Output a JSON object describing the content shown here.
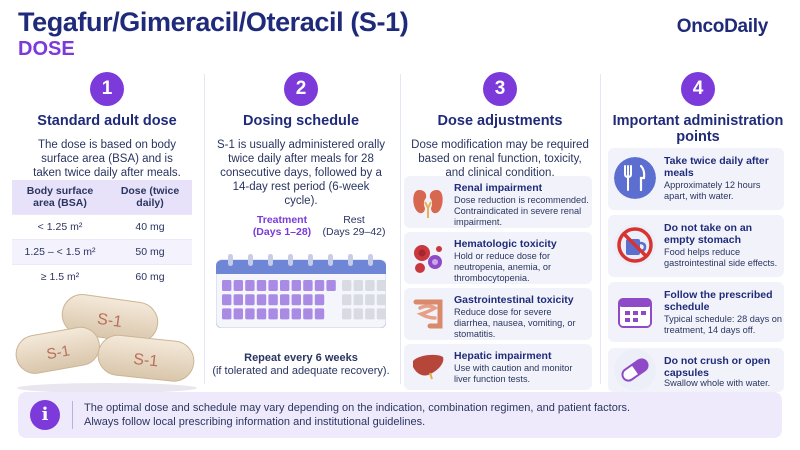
{
  "header": {
    "title": "Tegafur/Gimeracil/Oteracil (S-1)",
    "subtitle": "DOSE",
    "brand": "OncoDaily"
  },
  "columns": [
    {
      "number": "1",
      "title": "Standard adult dose",
      "text": "The dose is based on body surface area (BSA) and is taken twice daily after meals.",
      "table": {
        "headers": [
          "Body surface area (BSA)",
          "Dose (twice daily)"
        ],
        "rows": [
          [
            "< 1.25 m²",
            "40 mg"
          ],
          [
            "1.25 – < 1.5 m²",
            "50 mg"
          ],
          [
            "≥ 1.5 m²",
            "60 mg"
          ]
        ]
      },
      "pill_label": "S-1"
    },
    {
      "number": "2",
      "title": "Dosing schedule",
      "text": "S-1 is usually administered orally twice daily after meals for 28 consecutive days, followed by a 14-day rest period (6-week cycle).",
      "treatment_label": "Treatment",
      "treatment_days": "(Days 1–28)",
      "rest_label": "Rest",
      "rest_days": "(Days 29–42)",
      "treatment_day_count": 28,
      "rest_day_count": 14,
      "repeat_title": "Repeat every 6 weeks",
      "repeat_note": "(if tolerated and adequate recovery)."
    },
    {
      "number": "3",
      "title": "Dose adjustments",
      "text": "Dose modification may be required based on renal function, toxicity, and clinical condition.",
      "items": [
        {
          "icon": "kidney-icon",
          "title": "Renal impairment",
          "desc": "Dose reduction is recommended. Contraindicated in severe renal impairment."
        },
        {
          "icon": "blood-cells-icon",
          "title": "Hematologic toxicity",
          "desc": "Hold or reduce dose for neutropenia, anemia, or thrombocytopenia."
        },
        {
          "icon": "intestine-icon",
          "title": "Gastrointestinal toxicity",
          "desc": "Reduce dose for severe diarrhea, nausea, vomiting, or stomatitis."
        },
        {
          "icon": "liver-icon",
          "title": "Hepatic impairment",
          "desc": "Use with caution and monitor liver function tests."
        }
      ]
    },
    {
      "number": "4",
      "title": "Important administration points",
      "items": [
        {
          "icon": "fork-knife-icon",
          "title": "Take twice daily after meals",
          "desc": "Approximately 12 hours apart, with water."
        },
        {
          "icon": "no-empty-stomach-icon",
          "title": "Do not take on an empty stomach",
          "desc": "Food helps reduce gastrointestinal side effects."
        },
        {
          "icon": "calendar-icon",
          "title": "Follow the prescribed schedule",
          "desc": "Typical schedule: 28 days on treatment, 14 days off."
        },
        {
          "icon": "capsule-icon",
          "title": "Do not crush or open capsules",
          "desc": "Swallow whole with water."
        }
      ]
    }
  ],
  "footer": {
    "icon": "info-icon",
    "line1": "The optimal dose and schedule may vary depending on the indication, combination regimen, and patient factors.",
    "line2": "Always follow local prescribing information and institutional guidelines."
  },
  "colors": {
    "navy": "#1f2b7a",
    "purple": "#7b3ad9",
    "lavender": "#e7e2fa",
    "card": "#f2f3fa",
    "calendar_blue": "#6f86d6"
  }
}
